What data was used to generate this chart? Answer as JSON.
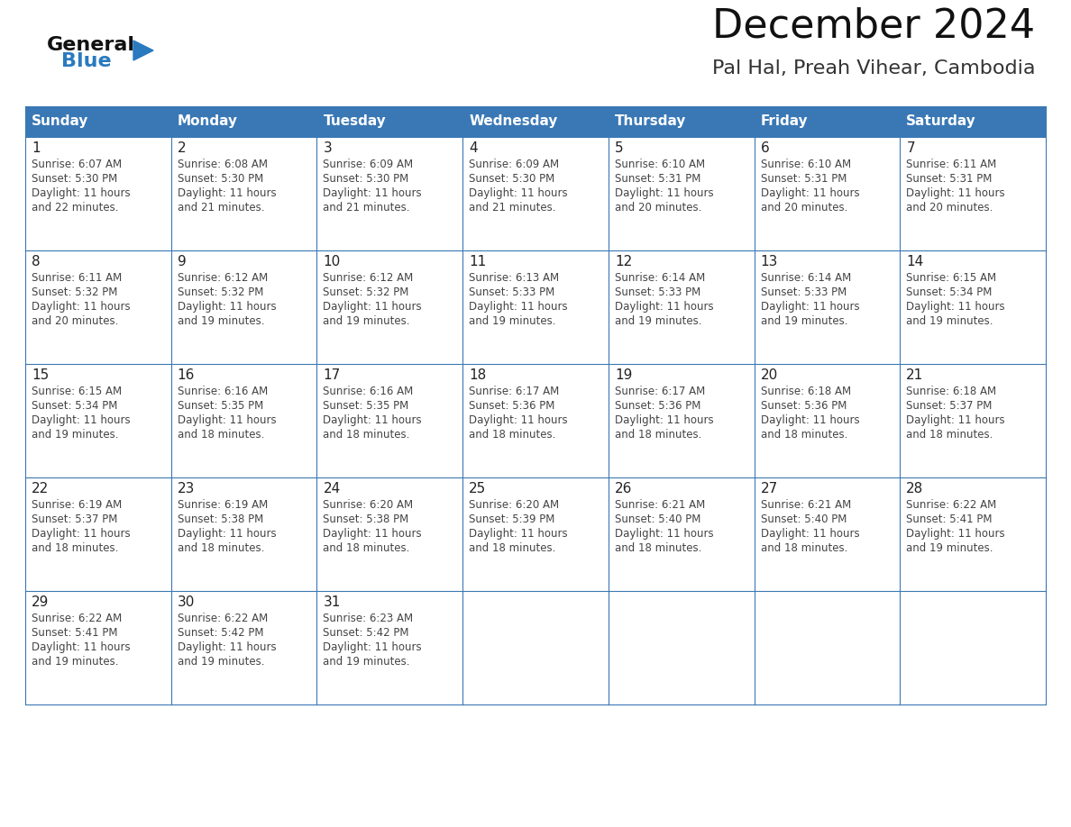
{
  "title": "December 2024",
  "subtitle": "Pal Hal, Preah Vihear, Cambodia",
  "days_of_week": [
    "Sunday",
    "Monday",
    "Tuesday",
    "Wednesday",
    "Thursday",
    "Friday",
    "Saturday"
  ],
  "header_bg": "#3a78b5",
  "header_text": "#ffffff",
  "cell_bg": "#ffffff",
  "cell_border": "#3a78b5",
  "day_number_color": "#222222",
  "cell_text_color": "#444444",
  "title_color": "#111111",
  "subtitle_color": "#333333",
  "logo_general_color": "#111111",
  "logo_blue_color": "#2a7abf",
  "calendar_data": [
    [
      {
        "day": 1,
        "sunrise": "6:07 AM",
        "sunset": "5:30 PM",
        "daylight": "11 hours and 22 minutes"
      },
      {
        "day": 2,
        "sunrise": "6:08 AM",
        "sunset": "5:30 PM",
        "daylight": "11 hours and 21 minutes"
      },
      {
        "day": 3,
        "sunrise": "6:09 AM",
        "sunset": "5:30 PM",
        "daylight": "11 hours and 21 minutes"
      },
      {
        "day": 4,
        "sunrise": "6:09 AM",
        "sunset": "5:30 PM",
        "daylight": "11 hours and 21 minutes"
      },
      {
        "day": 5,
        "sunrise": "6:10 AM",
        "sunset": "5:31 PM",
        "daylight": "11 hours and 20 minutes"
      },
      {
        "day": 6,
        "sunrise": "6:10 AM",
        "sunset": "5:31 PM",
        "daylight": "11 hours and 20 minutes"
      },
      {
        "day": 7,
        "sunrise": "6:11 AM",
        "sunset": "5:31 PM",
        "daylight": "11 hours and 20 minutes"
      }
    ],
    [
      {
        "day": 8,
        "sunrise": "6:11 AM",
        "sunset": "5:32 PM",
        "daylight": "11 hours and 20 minutes"
      },
      {
        "day": 9,
        "sunrise": "6:12 AM",
        "sunset": "5:32 PM",
        "daylight": "11 hours and 19 minutes"
      },
      {
        "day": 10,
        "sunrise": "6:12 AM",
        "sunset": "5:32 PM",
        "daylight": "11 hours and 19 minutes"
      },
      {
        "day": 11,
        "sunrise": "6:13 AM",
        "sunset": "5:33 PM",
        "daylight": "11 hours and 19 minutes"
      },
      {
        "day": 12,
        "sunrise": "6:14 AM",
        "sunset": "5:33 PM",
        "daylight": "11 hours and 19 minutes"
      },
      {
        "day": 13,
        "sunrise": "6:14 AM",
        "sunset": "5:33 PM",
        "daylight": "11 hours and 19 minutes"
      },
      {
        "day": 14,
        "sunrise": "6:15 AM",
        "sunset": "5:34 PM",
        "daylight": "11 hours and 19 minutes"
      }
    ],
    [
      {
        "day": 15,
        "sunrise": "6:15 AM",
        "sunset": "5:34 PM",
        "daylight": "11 hours and 19 minutes"
      },
      {
        "day": 16,
        "sunrise": "6:16 AM",
        "sunset": "5:35 PM",
        "daylight": "11 hours and 18 minutes"
      },
      {
        "day": 17,
        "sunrise": "6:16 AM",
        "sunset": "5:35 PM",
        "daylight": "11 hours and 18 minutes"
      },
      {
        "day": 18,
        "sunrise": "6:17 AM",
        "sunset": "5:36 PM",
        "daylight": "11 hours and 18 minutes"
      },
      {
        "day": 19,
        "sunrise": "6:17 AM",
        "sunset": "5:36 PM",
        "daylight": "11 hours and 18 minutes"
      },
      {
        "day": 20,
        "sunrise": "6:18 AM",
        "sunset": "5:36 PM",
        "daylight": "11 hours and 18 minutes"
      },
      {
        "day": 21,
        "sunrise": "6:18 AM",
        "sunset": "5:37 PM",
        "daylight": "11 hours and 18 minutes"
      }
    ],
    [
      {
        "day": 22,
        "sunrise": "6:19 AM",
        "sunset": "5:37 PM",
        "daylight": "11 hours and 18 minutes"
      },
      {
        "day": 23,
        "sunrise": "6:19 AM",
        "sunset": "5:38 PM",
        "daylight": "11 hours and 18 minutes"
      },
      {
        "day": 24,
        "sunrise": "6:20 AM",
        "sunset": "5:38 PM",
        "daylight": "11 hours and 18 minutes"
      },
      {
        "day": 25,
        "sunrise": "6:20 AM",
        "sunset": "5:39 PM",
        "daylight": "11 hours and 18 minutes"
      },
      {
        "day": 26,
        "sunrise": "6:21 AM",
        "sunset": "5:40 PM",
        "daylight": "11 hours and 18 minutes"
      },
      {
        "day": 27,
        "sunrise": "6:21 AM",
        "sunset": "5:40 PM",
        "daylight": "11 hours and 18 minutes"
      },
      {
        "day": 28,
        "sunrise": "6:22 AM",
        "sunset": "5:41 PM",
        "daylight": "11 hours and 19 minutes"
      }
    ],
    [
      {
        "day": 29,
        "sunrise": "6:22 AM",
        "sunset": "5:41 PM",
        "daylight": "11 hours and 19 minutes"
      },
      {
        "day": 30,
        "sunrise": "6:22 AM",
        "sunset": "5:42 PM",
        "daylight": "11 hours and 19 minutes"
      },
      {
        "day": 31,
        "sunrise": "6:23 AM",
        "sunset": "5:42 PM",
        "daylight": "11 hours and 19 minutes"
      },
      null,
      null,
      null,
      null
    ]
  ]
}
